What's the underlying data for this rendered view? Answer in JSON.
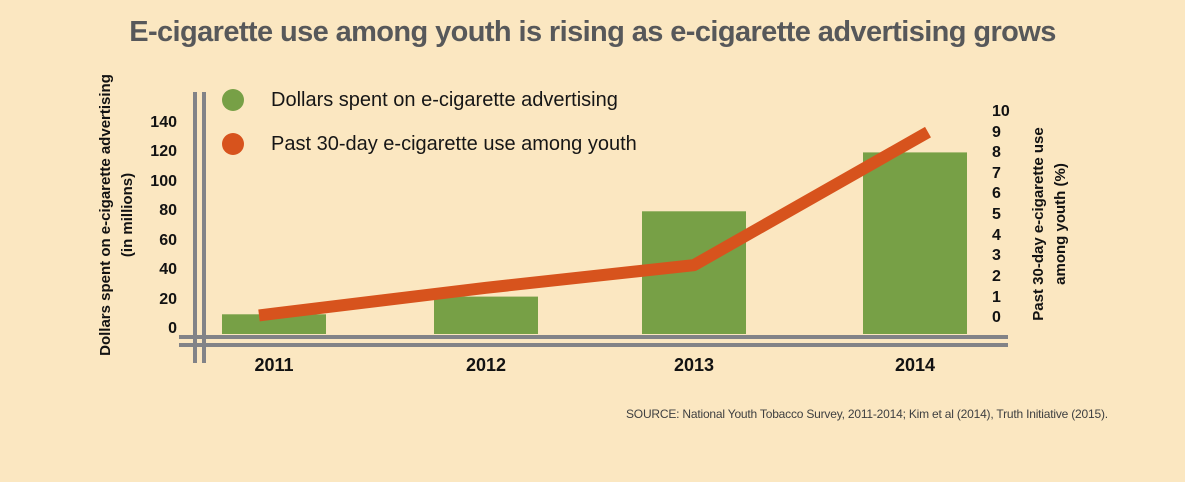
{
  "title": "E-cigarette use among youth is rising as e-cigarette advertising grows",
  "legend": [
    {
      "label": "Dollars spent on e-cigarette advertising",
      "color": "#77a046"
    },
    {
      "label": "Past 30-day e-cigarette use among youth",
      "color": "#d7531d"
    }
  ],
  "left_axis": {
    "label_line1": "Dollars spent on e-cigarette advertising",
    "label_line2": "(in millions)",
    "ticks": [
      "140",
      "120",
      "100",
      "80",
      "60",
      "40",
      "20",
      "0"
    ]
  },
  "right_axis": {
    "label_line1": "Past 30-day e-cigarette use",
    "label_line2": "among youth (%)",
    "ticks": [
      "10",
      "9",
      "8",
      "7",
      "6",
      "5",
      "4",
      "3",
      "2",
      "1",
      "0"
    ]
  },
  "x_axis": {
    "categories": [
      "2011",
      "2012",
      "2013",
      "2014"
    ]
  },
  "source": "SOURCE: National Youth Tobacco Survey, 2011-2014; Kim et al (2014), Truth Initiative (2015).",
  "colors": {
    "background": "#fbe7c1",
    "title": "#57585a",
    "bar": "#77a046",
    "line": "#d7531d",
    "axis": "#828387",
    "text": "#121212"
  },
  "chart_data": {
    "type": "combo",
    "categories": [
      "2011",
      "2012",
      "2013",
      "2014"
    ],
    "series": [
      {
        "name": "Dollars spent on e-cigarette advertising",
        "type": "bar",
        "axis": "left",
        "color": "#77a046",
        "values": [
          10,
          22,
          80,
          120
        ]
      },
      {
        "name": "Past 30-day e-cigarette use among youth",
        "type": "line",
        "axis": "right",
        "color": "#d7531d",
        "values": [
          0.75,
          2.0,
          3.1,
          9.2
        ]
      }
    ],
    "left_axis": {
      "label": "Dollars spent on e-cigarette advertising (in millions)",
      "range": [
        0,
        140
      ],
      "tick_step": 20
    },
    "right_axis": {
      "label": "Past 30-day e-cigarette use among youth (%)",
      "range": [
        0,
        10
      ],
      "tick_step": 1
    },
    "grid": false,
    "legend_position": "top-left"
  }
}
